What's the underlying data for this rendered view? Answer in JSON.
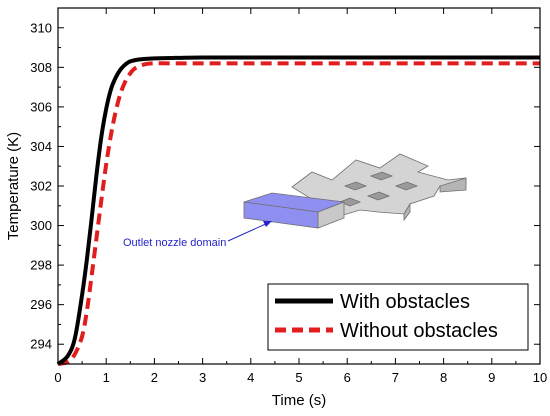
{
  "chart_data": {
    "type": "line",
    "title": "",
    "xlabel": "Time (s)",
    "ylabel": "Temperature (K)",
    "xlim": [
      0,
      10
    ],
    "ylim": [
      293,
      311
    ],
    "xticks": [
      0,
      1,
      2,
      3,
      4,
      5,
      6,
      7,
      8,
      9,
      10
    ],
    "yticks": [
      294,
      296,
      298,
      300,
      302,
      304,
      306,
      308,
      310
    ],
    "grid": false,
    "legend": "bottom-right",
    "series": [
      {
        "name": "With obstacles",
        "color": "#000000",
        "style": "solid",
        "x": [
          0,
          0.2,
          0.35,
          0.5,
          0.6,
          0.7,
          0.8,
          0.9,
          1.0,
          1.1,
          1.2,
          1.3,
          1.4,
          1.5,
          1.7,
          2.0,
          2.5,
          3.0,
          4.0,
          6.0,
          8.0,
          10.0
        ],
        "y": [
          293.0,
          293.4,
          294.3,
          296.5,
          298.3,
          300.4,
          302.6,
          304.5,
          305.9,
          306.9,
          307.5,
          307.9,
          308.15,
          308.3,
          308.4,
          308.45,
          308.48,
          308.5,
          308.5,
          308.5,
          308.5,
          308.5
        ]
      },
      {
        "name": "Without obstacles",
        "color": "#e11d1d",
        "style": "dashed",
        "x": [
          0,
          0.2,
          0.35,
          0.5,
          0.6,
          0.7,
          0.8,
          0.9,
          1.0,
          1.1,
          1.2,
          1.3,
          1.4,
          1.5,
          1.6,
          1.8,
          2.0,
          2.5,
          3.0,
          4.0,
          6.0,
          8.0,
          10.0
        ],
        "y": [
          293.0,
          293.1,
          293.5,
          294.4,
          295.7,
          297.5,
          299.4,
          301.3,
          303.1,
          304.6,
          305.8,
          306.7,
          307.3,
          307.7,
          307.95,
          308.15,
          308.2,
          308.2,
          308.2,
          308.2,
          308.2,
          308.2,
          308.2
        ]
      }
    ],
    "annotation": {
      "text": "Outlet nozzle domain"
    },
    "inset_colors": {
      "structure": "#d4d4d4",
      "structure_edge": "#6f6f6f",
      "nozzle": "#8f8ff2",
      "arrow": "#2525c9"
    }
  }
}
